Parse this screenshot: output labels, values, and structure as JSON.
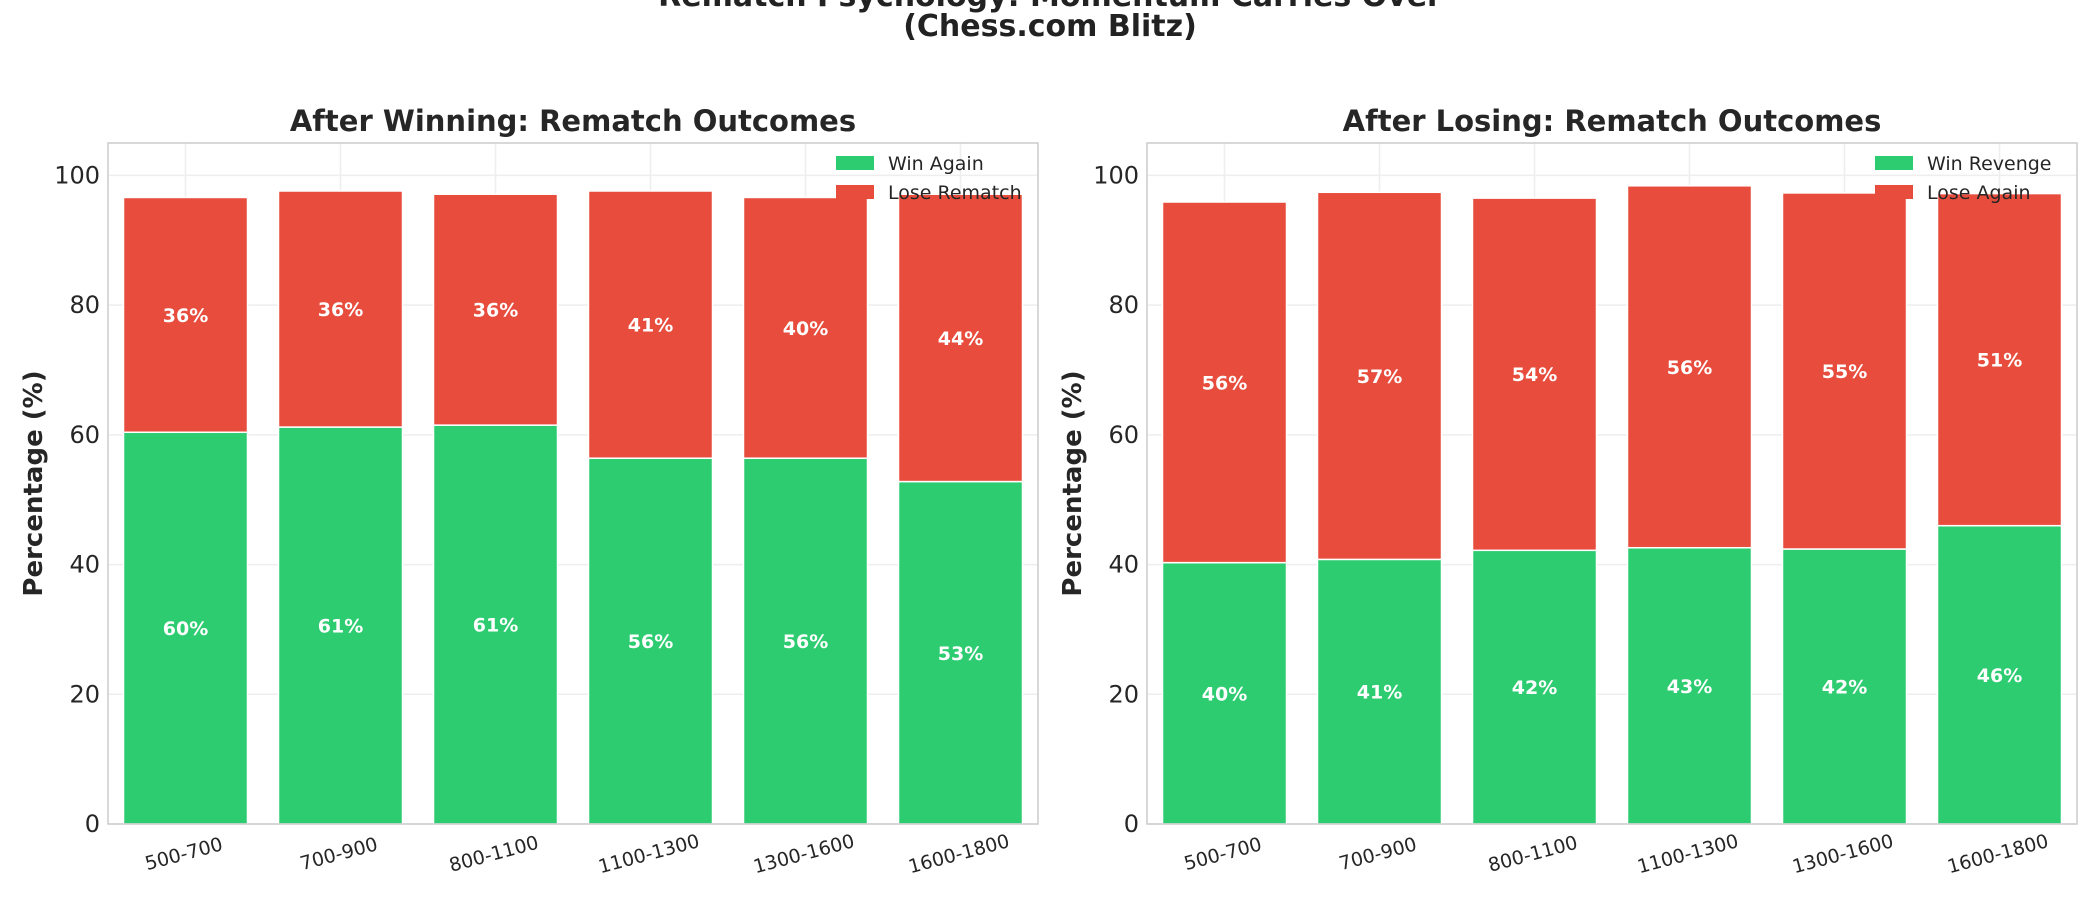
{
  "title_line1": "Rematch Psychology: Momentum Carries Over",
  "title_line2": "(Chess.com Blitz)",
  "colors": {
    "green": "#2ecc71",
    "red": "#e74c3c",
    "grid": "#eeeeee",
    "frame": "#cccccc"
  },
  "chart_data": [
    {
      "type": "bar",
      "stacked": true,
      "title": "After Winning: Rematch Outcomes",
      "xlabel": "",
      "ylabel": "Percentage (%)",
      "ylim": [
        0,
        105
      ],
      "yticks": [
        0,
        20,
        40,
        60,
        80,
        100
      ],
      "grid": true,
      "legend_position": "top-right",
      "categories": [
        "500-700",
        "700-900",
        "800-1100",
        "1100-1300",
        "1300-1600",
        "1600-1800"
      ],
      "series": [
        {
          "name": "Win Again",
          "color": "#2ecc71",
          "values": [
            60.4,
            61.2,
            61.5,
            56.4,
            56.4,
            52.8
          ],
          "labels": [
            "60%",
            "61%",
            "61%",
            "56%",
            "56%",
            "53%"
          ]
        },
        {
          "name": "Lose Rematch",
          "color": "#e74c3c",
          "values": [
            36.2,
            36.4,
            35.6,
            41.2,
            40.2,
            44.3
          ],
          "labels": [
            "36%",
            "36%",
            "36%",
            "41%",
            "40%",
            "44%"
          ]
        }
      ]
    },
    {
      "type": "bar",
      "stacked": true,
      "title": "After Losing: Rematch Outcomes",
      "xlabel": "",
      "ylabel": "Percentage (%)",
      "ylim": [
        0,
        105
      ],
      "yticks": [
        0,
        20,
        40,
        60,
        80,
        100
      ],
      "grid": true,
      "legend_position": "top-right",
      "categories": [
        "500-700",
        "700-900",
        "800-1100",
        "1100-1300",
        "1300-1600",
        "1600-1800"
      ],
      "series": [
        {
          "name": "Win Revenge",
          "color": "#2ecc71",
          "values": [
            40.3,
            40.8,
            42.2,
            42.6,
            42.4,
            46.0
          ],
          "labels": [
            "40%",
            "41%",
            "42%",
            "43%",
            "42%",
            "46%"
          ]
        },
        {
          "name": "Lose Again",
          "color": "#e74c3c",
          "values": [
            55.6,
            56.6,
            54.3,
            55.8,
            54.9,
            51.2
          ],
          "labels": [
            "56%",
            "57%",
            "54%",
            "56%",
            "55%",
            "51%"
          ]
        }
      ]
    }
  ]
}
